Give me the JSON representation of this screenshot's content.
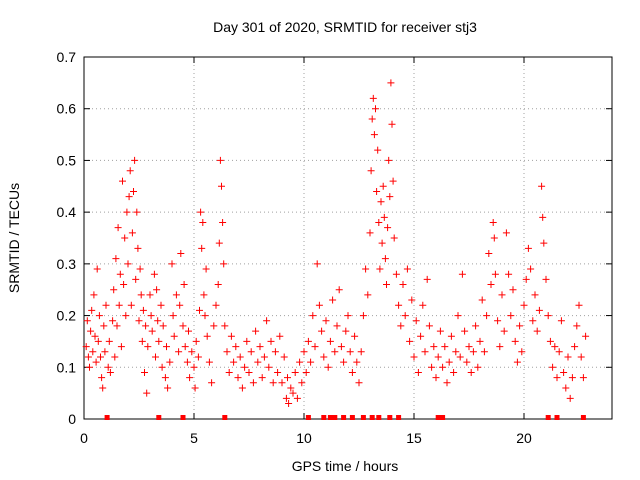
{
  "chart_data": {
    "type": "scatter",
    "title": "Day 301 of 2020, SRMTID for receiver stj3",
    "xlabel": "GPS time / hours",
    "ylabel": "SRMTID / TECUs",
    "xlim": [
      0,
      24
    ],
    "ylim": [
      0,
      0.7
    ],
    "x_ticks": [
      0,
      5,
      10,
      15,
      20
    ],
    "x_tick_labels": [
      "0",
      "5",
      "10",
      "15",
      "20"
    ],
    "y_ticks": [
      0,
      0.1,
      0.2,
      0.3,
      0.4,
      0.5,
      0.6,
      0.7
    ],
    "y_tick_labels": [
      "0",
      "0.1",
      "0.2",
      "0.3",
      "0.4",
      "0.5",
      "0.6",
      "0.7"
    ],
    "grid": true,
    "marker": "plus",
    "color": "#ff0000",
    "series": [
      {
        "name": "SRMTID",
        "points": [
          [
            0.1,
            0.14
          ],
          [
            0.15,
            0.19
          ],
          [
            0.2,
            0.12
          ],
          [
            0.25,
            0.1
          ],
          [
            0.3,
            0.17
          ],
          [
            0.35,
            0.21
          ],
          [
            0.4,
            0.13
          ],
          [
            0.45,
            0.24
          ],
          [
            0.5,
            0.16
          ],
          [
            0.55,
            0.11
          ],
          [
            0.6,
            0.29
          ],
          [
            0.65,
            0.15
          ],
          [
            0.7,
            0.2
          ],
          [
            0.75,
            0.12
          ],
          [
            0.8,
            0.08
          ],
          [
            0.85,
            0.06
          ],
          [
            0.9,
            0.18
          ],
          [
            0.95,
            0.13
          ],
          [
            1.0,
            0.22
          ],
          [
            1.1,
            0.1
          ],
          [
            1.15,
            0.15
          ],
          [
            1.2,
            0.09
          ],
          [
            1.3,
            0.19
          ],
          [
            1.35,
            0.25
          ],
          [
            1.4,
            0.12
          ],
          [
            1.45,
            0.31
          ],
          [
            1.5,
            0.18
          ],
          [
            1.55,
            0.37
          ],
          [
            1.6,
            0.22
          ],
          [
            1.65,
            0.28
          ],
          [
            1.7,
            0.14
          ],
          [
            1.75,
            0.46
          ],
          [
            1.8,
            0.26
          ],
          [
            1.85,
            0.35
          ],
          [
            1.9,
            0.2
          ],
          [
            1.95,
            0.4
          ],
          [
            2.0,
            0.3
          ],
          [
            2.05,
            0.43
          ],
          [
            2.1,
            0.48
          ],
          [
            2.15,
            0.22
          ],
          [
            2.2,
            0.36
          ],
          [
            2.25,
            0.44
          ],
          [
            2.3,
            0.5
          ],
          [
            2.35,
            0.27
          ],
          [
            2.4,
            0.4
          ],
          [
            2.45,
            0.33
          ],
          [
            2.5,
            0.19
          ],
          [
            2.55,
            0.29
          ],
          [
            2.6,
            0.24
          ],
          [
            2.65,
            0.15
          ],
          [
            2.7,
            0.21
          ],
          [
            2.75,
            0.09
          ],
          [
            2.8,
            0.18
          ],
          [
            2.85,
            0.05
          ],
          [
            2.9,
            0.14
          ],
          [
            3.0,
            0.24
          ],
          [
            3.05,
            0.2
          ],
          [
            3.1,
            0.17
          ],
          [
            3.2,
            0.28
          ],
          [
            3.25,
            0.12
          ],
          [
            3.3,
            0.25
          ],
          [
            3.35,
            0.19
          ],
          [
            3.4,
            0.15
          ],
          [
            3.5,
            0.22
          ],
          [
            3.55,
            0.1
          ],
          [
            3.6,
            0.18
          ],
          [
            3.7,
            0.08
          ],
          [
            3.75,
            0.14
          ],
          [
            3.8,
            0.06
          ],
          [
            3.9,
            0.11
          ],
          [
            4.0,
            0.3
          ],
          [
            4.05,
            0.2
          ],
          [
            4.1,
            0.16
          ],
          [
            4.2,
            0.24
          ],
          [
            4.3,
            0.13
          ],
          [
            4.35,
            0.22
          ],
          [
            4.4,
            0.32
          ],
          [
            4.5,
            0.18
          ],
          [
            4.55,
            0.26
          ],
          [
            4.6,
            0.14
          ],
          [
            4.7,
            0.11
          ],
          [
            4.75,
            0.17
          ],
          [
            4.8,
            0.08
          ],
          [
            4.9,
            0.13
          ],
          [
            5.0,
            0.1
          ],
          [
            5.05,
            0.06
          ],
          [
            5.1,
            0.15
          ],
          [
            5.2,
            0.12
          ],
          [
            5.25,
            0.21
          ],
          [
            5.3,
            0.4
          ],
          [
            5.35,
            0.33
          ],
          [
            5.4,
            0.38
          ],
          [
            5.45,
            0.24
          ],
          [
            5.5,
            0.2
          ],
          [
            5.55,
            0.29
          ],
          [
            5.6,
            0.16
          ],
          [
            5.7,
            0.11
          ],
          [
            5.8,
            0.07
          ],
          [
            5.9,
            0.18
          ],
          [
            6.0,
            0.22
          ],
          [
            6.1,
            0.26
          ],
          [
            6.15,
            0.34
          ],
          [
            6.2,
            0.5
          ],
          [
            6.25,
            0.45
          ],
          [
            6.3,
            0.38
          ],
          [
            6.35,
            0.3
          ],
          [
            6.4,
            0.18
          ],
          [
            6.5,
            0.13
          ],
          [
            6.6,
            0.09
          ],
          [
            6.7,
            0.16
          ],
          [
            6.8,
            0.11
          ],
          [
            6.9,
            0.14
          ],
          [
            7.0,
            0.08
          ],
          [
            7.1,
            0.12
          ],
          [
            7.2,
            0.06
          ],
          [
            7.3,
            0.1
          ],
          [
            7.4,
            0.15
          ],
          [
            7.5,
            0.09
          ],
          [
            7.6,
            0.13
          ],
          [
            7.7,
            0.07
          ],
          [
            7.8,
            0.17
          ],
          [
            7.9,
            0.11
          ],
          [
            8.0,
            0.14
          ],
          [
            8.1,
            0.08
          ],
          [
            8.2,
            0.12
          ],
          [
            8.3,
            0.19
          ],
          [
            8.4,
            0.1
          ],
          [
            8.5,
            0.15
          ],
          [
            8.6,
            0.07
          ],
          [
            8.7,
            0.13
          ],
          [
            8.8,
            0.09
          ],
          [
            8.9,
            0.16
          ],
          [
            9.0,
            0.07
          ],
          [
            9.1,
            0.12
          ],
          [
            9.2,
            0.04
          ],
          [
            9.25,
            0.08
          ],
          [
            9.3,
            0.03
          ],
          [
            9.4,
            0.06
          ],
          [
            9.5,
            0.05
          ],
          [
            9.6,
            0.09
          ],
          [
            9.7,
            0.04
          ],
          [
            9.8,
            0.11
          ],
          [
            9.9,
            0.07
          ],
          [
            10.0,
            0.13
          ],
          [
            10.1,
            0.09
          ],
          [
            10.2,
            0.15
          ],
          [
            10.3,
            0.11
          ],
          [
            10.4,
            0.2
          ],
          [
            10.5,
            0.14
          ],
          [
            10.6,
            0.3
          ],
          [
            10.7,
            0.22
          ],
          [
            10.8,
            0.17
          ],
          [
            10.9,
            0.12
          ],
          [
            11.0,
            0.19
          ],
          [
            11.1,
            0.1
          ],
          [
            11.2,
            0.15
          ],
          [
            11.3,
            0.23
          ],
          [
            11.4,
            0.13
          ],
          [
            11.5,
            0.18
          ],
          [
            11.6,
            0.25
          ],
          [
            11.7,
            0.14
          ],
          [
            11.8,
            0.11
          ],
          [
            11.9,
            0.17
          ],
          [
            12.0,
            0.2
          ],
          [
            12.1,
            0.13
          ],
          [
            12.2,
            0.09
          ],
          [
            12.3,
            0.16
          ],
          [
            12.4,
            0.11
          ],
          [
            12.5,
            0.07
          ],
          [
            12.6,
            0.13
          ],
          [
            12.7,
            0.2
          ],
          [
            12.8,
            0.29
          ],
          [
            12.9,
            0.24
          ],
          [
            13.0,
            0.36
          ],
          [
            13.05,
            0.48
          ],
          [
            13.1,
            0.58
          ],
          [
            13.15,
            0.62
          ],
          [
            13.2,
            0.55
          ],
          [
            13.25,
            0.6
          ],
          [
            13.3,
            0.44
          ],
          [
            13.35,
            0.52
          ],
          [
            13.4,
            0.38
          ],
          [
            13.45,
            0.29
          ],
          [
            13.5,
            0.42
          ],
          [
            13.55,
            0.34
          ],
          [
            13.6,
            0.45
          ],
          [
            13.65,
            0.39
          ],
          [
            13.7,
            0.31
          ],
          [
            13.75,
            0.26
          ],
          [
            13.8,
            0.37
          ],
          [
            13.85,
            0.5
          ],
          [
            13.9,
            0.43
          ],
          [
            13.95,
            0.65
          ],
          [
            14.0,
            0.57
          ],
          [
            14.05,
            0.46
          ],
          [
            14.1,
            0.35
          ],
          [
            14.2,
            0.28
          ],
          [
            14.3,
            0.22
          ],
          [
            14.4,
            0.18
          ],
          [
            14.5,
            0.26
          ],
          [
            14.6,
            0.2
          ],
          [
            14.7,
            0.29
          ],
          [
            14.8,
            0.15
          ],
          [
            14.9,
            0.23
          ],
          [
            15.0,
            0.12
          ],
          [
            15.1,
            0.19
          ],
          [
            15.2,
            0.09
          ],
          [
            15.3,
            0.16
          ],
          [
            15.4,
            0.22
          ],
          [
            15.5,
            0.13
          ],
          [
            15.6,
            0.27
          ],
          [
            15.7,
            0.18
          ],
          [
            15.8,
            0.1
          ],
          [
            15.9,
            0.14
          ],
          [
            16.0,
            0.08
          ],
          [
            16.1,
            0.12
          ],
          [
            16.2,
            0.17
          ],
          [
            16.3,
            0.1
          ],
          [
            16.4,
            0.14
          ],
          [
            16.5,
            0.07
          ],
          [
            16.6,
            0.11
          ],
          [
            16.7,
            0.16
          ],
          [
            16.8,
            0.09
          ],
          [
            16.9,
            0.13
          ],
          [
            17.0,
            0.2
          ],
          [
            17.1,
            0.12
          ],
          [
            17.2,
            0.28
          ],
          [
            17.3,
            0.17
          ],
          [
            17.4,
            0.11
          ],
          [
            17.5,
            0.14
          ],
          [
            17.6,
            0.09
          ],
          [
            17.7,
            0.13
          ],
          [
            17.8,
            0.18
          ],
          [
            17.9,
            0.1
          ],
          [
            18.0,
            0.15
          ],
          [
            18.1,
            0.23
          ],
          [
            18.2,
            0.13
          ],
          [
            18.3,
            0.2
          ],
          [
            18.4,
            0.32
          ],
          [
            18.5,
            0.26
          ],
          [
            18.6,
            0.38
          ],
          [
            18.65,
            0.35
          ],
          [
            18.7,
            0.28
          ],
          [
            18.8,
            0.19
          ],
          [
            18.9,
            0.14
          ],
          [
            19.0,
            0.24
          ],
          [
            19.1,
            0.17
          ],
          [
            19.2,
            0.36
          ],
          [
            19.3,
            0.28
          ],
          [
            19.4,
            0.2
          ],
          [
            19.5,
            0.25
          ],
          [
            19.6,
            0.15
          ],
          [
            19.7,
            0.11
          ],
          [
            19.8,
            0.18
          ],
          [
            19.9,
            0.13
          ],
          [
            20.0,
            0.22
          ],
          [
            20.1,
            0.27
          ],
          [
            20.2,
            0.33
          ],
          [
            20.3,
            0.29
          ],
          [
            20.4,
            0.19
          ],
          [
            20.5,
            0.24
          ],
          [
            20.6,
            0.17
          ],
          [
            20.7,
            0.21
          ],
          [
            20.8,
            0.45
          ],
          [
            20.85,
            0.39
          ],
          [
            20.9,
            0.34
          ],
          [
            21.0,
            0.27
          ],
          [
            21.1,
            0.2
          ],
          [
            21.2,
            0.15
          ],
          [
            21.3,
            0.1
          ],
          [
            21.4,
            0.14
          ],
          [
            21.5,
            0.08
          ],
          [
            21.6,
            0.13
          ],
          [
            21.7,
            0.19
          ],
          [
            21.8,
            0.09
          ],
          [
            21.9,
            0.06
          ],
          [
            22.0,
            0.12
          ],
          [
            22.1,
            0.04
          ],
          [
            22.2,
            0.08
          ],
          [
            22.3,
            0.14
          ],
          [
            22.4,
            0.18
          ],
          [
            22.5,
            0.22
          ],
          [
            22.6,
            0.12
          ],
          [
            22.7,
            0.08
          ],
          [
            22.8,
            0.16
          ]
        ]
      }
    ],
    "gap_markers_x": [
      1.05,
      3.4,
      4.5,
      6.4,
      10.2,
      10.9,
      11.2,
      11.4,
      11.8,
      12.2,
      12.7,
      13.1,
      13.4,
      13.9,
      14.3,
      16.1,
      16.3,
      21.1,
      21.5,
      22.7
    ]
  }
}
